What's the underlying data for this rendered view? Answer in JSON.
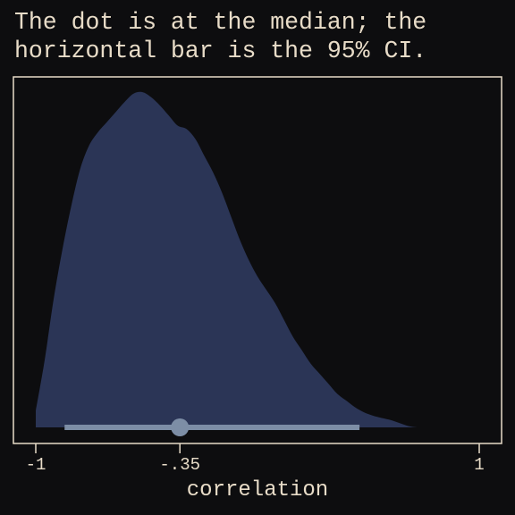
{
  "chart_data": {
    "type": "area",
    "title_lines": [
      "The dot is at the median; the",
      "horizontal bar is the 95% CI."
    ],
    "xlabel": "correlation",
    "ylabel": "",
    "xlim": [
      -1,
      1
    ],
    "xticks": [
      {
        "value": -1,
        "label": "-1"
      },
      {
        "value": -0.35,
        "label": "-.35"
      },
      {
        "value": 1,
        "label": "1"
      }
    ],
    "density": {
      "x": [
        -1.0,
        -0.96,
        -0.92,
        -0.88,
        -0.84,
        -0.8,
        -0.76,
        -0.72,
        -0.68,
        -0.64,
        -0.6,
        -0.56,
        -0.52,
        -0.48,
        -0.44,
        -0.4,
        -0.36,
        -0.32,
        -0.28,
        -0.24,
        -0.2,
        -0.16,
        -0.12,
        -0.08,
        -0.04,
        0.0,
        0.04,
        0.08,
        0.12,
        0.16,
        0.2,
        0.24,
        0.28,
        0.32,
        0.36,
        0.4,
        0.44,
        0.48,
        0.52,
        0.56,
        0.6,
        0.64,
        0.68,
        0.72,
        0.76,
        0.8,
        0.84,
        0.88,
        0.92
      ],
      "y": [
        0.05,
        0.2,
        0.38,
        0.53,
        0.66,
        0.77,
        0.84,
        0.88,
        0.91,
        0.94,
        0.97,
        0.995,
        1.0,
        0.985,
        0.96,
        0.93,
        0.9,
        0.89,
        0.86,
        0.81,
        0.76,
        0.7,
        0.63,
        0.56,
        0.5,
        0.45,
        0.41,
        0.37,
        0.32,
        0.27,
        0.23,
        0.19,
        0.16,
        0.13,
        0.1,
        0.08,
        0.06,
        0.045,
        0.035,
        0.028,
        0.022,
        0.013,
        0.004,
        0.0,
        0.0,
        0.0,
        0.0,
        0.0,
        0.0
      ]
    },
    "median": -0.35,
    "ci95": [
      -0.87,
      0.46
    ],
    "colors": {
      "background": "#0d0d0f",
      "text": "#e8dcc8",
      "density_fill": "#2b3556",
      "interval": "#7d8ea6"
    },
    "grid": false,
    "legend": "none"
  }
}
